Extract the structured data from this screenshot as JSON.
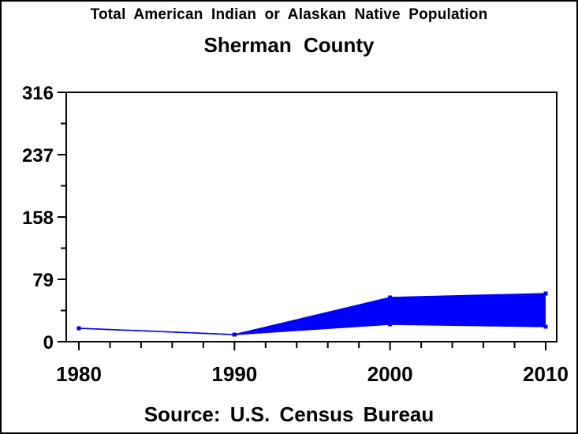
{
  "chart_data": {
    "type": "area",
    "title": "Total American Indian or Alaskan Native Population",
    "subtitle": "Sherman County",
    "footnote": "Source: U.S. Census Bureau",
    "x": [
      1980,
      1990,
      2000,
      2010
    ],
    "series": [
      {
        "name": "upper-bound",
        "values": [
          17,
          9,
          56,
          61
        ]
      },
      {
        "name": "lower-bound",
        "values": [
          17,
          9,
          22,
          19
        ]
      }
    ],
    "band_fill_between_series": true,
    "marker": "square",
    "xlim": [
      1980,
      2010
    ],
    "ylim": [
      0,
      316
    ],
    "y_major_ticks": [
      0,
      79,
      158,
      237,
      316
    ],
    "y_minor_ticks": [
      39.5,
      118.5,
      197.5,
      276.5
    ],
    "x_major_ticks": [
      1980,
      1990,
      2000,
      2010
    ],
    "x_minor_step_years": 2,
    "grid": false,
    "legend": false,
    "line_color": "#0000ff",
    "axis_color": "#000000",
    "background_color": "#ffffff"
  }
}
